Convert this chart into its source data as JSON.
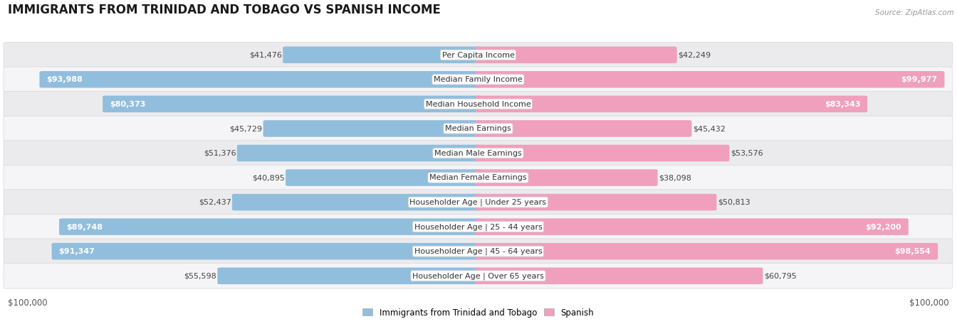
{
  "title": "IMMIGRANTS FROM TRINIDAD AND TOBAGO VS SPANISH INCOME",
  "source": "Source: ZipAtlas.com",
  "categories": [
    "Per Capita Income",
    "Median Family Income",
    "Median Household Income",
    "Median Earnings",
    "Median Male Earnings",
    "Median Female Earnings",
    "Householder Age | Under 25 years",
    "Householder Age | 25 - 44 years",
    "Householder Age | 45 - 64 years",
    "Householder Age | Over 65 years"
  ],
  "left_values": [
    41476,
    93988,
    80373,
    45729,
    51376,
    40895,
    52437,
    89748,
    91347,
    55598
  ],
  "right_values": [
    42249,
    99977,
    83343,
    45432,
    53576,
    38098,
    50813,
    92200,
    98554,
    60795
  ],
  "left_labels": [
    "$41,476",
    "$93,988",
    "$80,373",
    "$45,729",
    "$51,376",
    "$40,895",
    "$52,437",
    "$89,748",
    "$91,347",
    "$55,598"
  ],
  "right_labels": [
    "$42,249",
    "$99,977",
    "$83,343",
    "$45,432",
    "$53,576",
    "$38,098",
    "$50,813",
    "$92,200",
    "$98,554",
    "$60,795"
  ],
  "max_value": 100000,
  "left_color": "#92bedd",
  "right_color": "#f0a0bc",
  "left_legend_color": "#92bedd",
  "right_legend_color": "#f0a0bc",
  "left_legend": "Immigrants from Trinidad and Tobago",
  "right_legend": "Spanish",
  "row_bg_light": "#f0f0f2",
  "row_bg_dark": "#e2e4e8",
  "xlabel_left": "$100,000",
  "xlabel_right": "$100,000",
  "title_fontsize": 12,
  "label_fontsize": 8,
  "category_fontsize": 8,
  "threshold_inside": 72000
}
